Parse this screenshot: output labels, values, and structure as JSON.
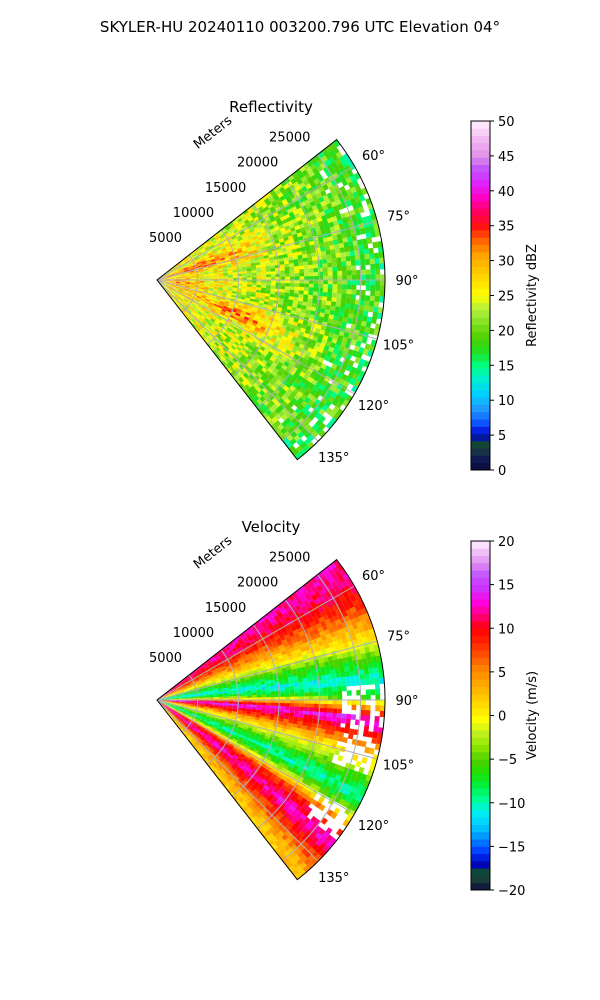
{
  "figure": {
    "title": "SKYLER-HU  20240110  003200.796 UTC Elevation 04°"
  },
  "chart_data": [
    {
      "type": "heatmap",
      "projection": "polar-sector",
      "title": "Reflectivity",
      "radial_label": "Meters",
      "radial_ticks": [
        "5000",
        "10000",
        "15000",
        "20000",
        "25000"
      ],
      "angle_ticks": [
        "60°",
        "75°",
        "90°",
        "105°",
        "120°",
        "135°"
      ],
      "azimuth_range": [
        52,
        142
      ],
      "range_max": 28000,
      "grid": true,
      "colorbar": {
        "label": "Reflectivity dBZ",
        "min": 0,
        "max": 50,
        "ticks": [
          "0",
          "5",
          "10",
          "15",
          "20",
          "25",
          "30",
          "35",
          "40",
          "45",
          "50"
        ],
        "stops": [
          [
            0,
            "#0a0a3c"
          ],
          [
            2,
            "#12205a"
          ],
          [
            3,
            "#1a3a3a"
          ],
          [
            4,
            "#0d4d2d"
          ],
          [
            5,
            "#0000d0"
          ],
          [
            7,
            "#1060ff"
          ],
          [
            9,
            "#20a0ff"
          ],
          [
            11,
            "#00d0ff"
          ],
          [
            13,
            "#00f0d0"
          ],
          [
            15,
            "#00ff80"
          ],
          [
            17,
            "#20e020"
          ],
          [
            19,
            "#50d000"
          ],
          [
            21,
            "#80e020"
          ],
          [
            23,
            "#b0f040"
          ],
          [
            25,
            "#ffff00"
          ],
          [
            27,
            "#ffe000"
          ],
          [
            29,
            "#ffc000"
          ],
          [
            31,
            "#ffa000"
          ],
          [
            33,
            "#ff6000"
          ],
          [
            35,
            "#ff1010"
          ],
          [
            37,
            "#ff0060"
          ],
          [
            39,
            "#ff00c0"
          ],
          [
            41,
            "#e020ff"
          ],
          [
            43,
            "#c050ff"
          ],
          [
            45,
            "#e090e8"
          ],
          [
            47,
            "#f0b0f0"
          ],
          [
            50,
            "#fff0ff"
          ]
        ]
      }
    },
    {
      "type": "heatmap",
      "projection": "polar-sector",
      "title": "Velocity",
      "radial_label": "Meters",
      "radial_ticks": [
        "5000",
        "10000",
        "15000",
        "20000",
        "25000"
      ],
      "angle_ticks": [
        "60°",
        "75°",
        "90°",
        "105°",
        "120°",
        "135°"
      ],
      "azimuth_range": [
        52,
        142
      ],
      "range_max": 28000,
      "grid": true,
      "colorbar": {
        "label": "Velocity (m/s)",
        "min": -20,
        "max": 20,
        "ticks": [
          "−20",
          "−15",
          "−10",
          "−5",
          "0",
          "5",
          "10",
          "15",
          "20"
        ],
        "stops": [
          [
            -20,
            "#0a0a3c"
          ],
          [
            -19,
            "#1a3a3a"
          ],
          [
            -18,
            "#0d4d2d"
          ],
          [
            -17,
            "#0000c0"
          ],
          [
            -15.5,
            "#0040ff"
          ],
          [
            -14,
            "#0090ff"
          ],
          [
            -12.5,
            "#00d0ff"
          ],
          [
            -11,
            "#00f0f0"
          ],
          [
            -9.5,
            "#00ff90"
          ],
          [
            -8,
            "#00f040"
          ],
          [
            -6.5,
            "#20e000"
          ],
          [
            -5,
            "#50d000"
          ],
          [
            -3.5,
            "#90e800"
          ],
          [
            -2,
            "#c0f020"
          ],
          [
            -0.5,
            "#ffff00"
          ],
          [
            1,
            "#ffe000"
          ],
          [
            2.5,
            "#ffc000"
          ],
          [
            4,
            "#ffa000"
          ],
          [
            5.5,
            "#ff8000"
          ],
          [
            7,
            "#ff5000"
          ],
          [
            8.5,
            "#ff2000"
          ],
          [
            10,
            "#ff0000"
          ],
          [
            11.5,
            "#ff0080"
          ],
          [
            13,
            "#ff00e0"
          ],
          [
            14.5,
            "#d030ff"
          ],
          [
            16,
            "#c050ff"
          ],
          [
            17.5,
            "#e090f0"
          ],
          [
            20,
            "#fff0ff"
          ]
        ]
      }
    }
  ]
}
